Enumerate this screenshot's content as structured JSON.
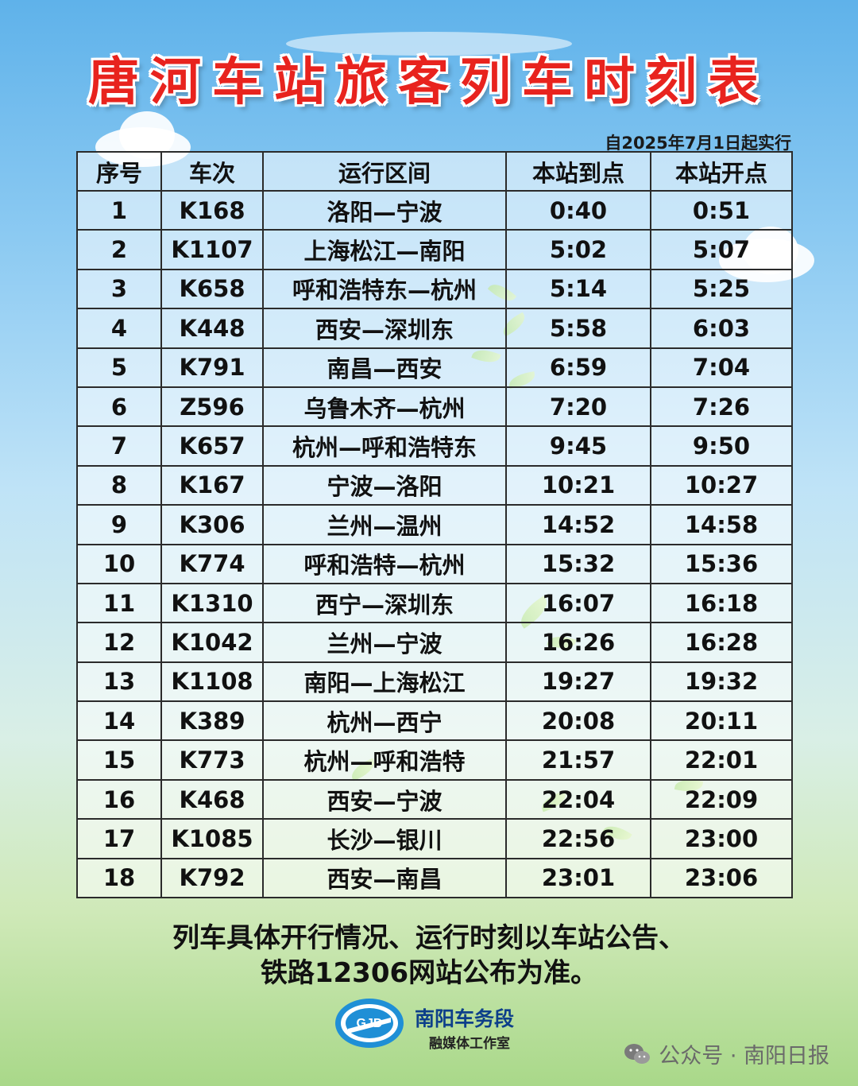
{
  "header": {
    "title": "唐河车站旅客列车时刻表",
    "effective_date": "自2025年7月1日起实行"
  },
  "table": {
    "columns": [
      "序号",
      "车次",
      "运行区间",
      "本站到点",
      "本站开点"
    ],
    "rows": [
      [
        "1",
        "K168",
        "洛阳—宁波",
        "0:40",
        "0:51"
      ],
      [
        "2",
        "K1107",
        "上海松江—南阳",
        "5:02",
        "5:07"
      ],
      [
        "3",
        "K658",
        "呼和浩特东—杭州",
        "5:14",
        "5:25"
      ],
      [
        "4",
        "K448",
        "西安—深圳东",
        "5:58",
        "6:03"
      ],
      [
        "5",
        "K791",
        "南昌—西安",
        "6:59",
        "7:04"
      ],
      [
        "6",
        "Z596",
        "乌鲁木齐—杭州",
        "7:20",
        "7:26"
      ],
      [
        "7",
        "K657",
        "杭州—呼和浩特东",
        "9:45",
        "9:50"
      ],
      [
        "8",
        "K167",
        "宁波—洛阳",
        "10:21",
        "10:27"
      ],
      [
        "9",
        "K306",
        "兰州—温州",
        "14:52",
        "14:58"
      ],
      [
        "10",
        "K774",
        "呼和浩特—杭州",
        "15:32",
        "15:36"
      ],
      [
        "11",
        "K1310",
        "西宁—深圳东",
        "16:07",
        "16:18"
      ],
      [
        "12",
        "K1042",
        "兰州—宁波",
        "16:26",
        "16:28"
      ],
      [
        "13",
        "K1108",
        "南阳—上海松江",
        "19:27",
        "19:32"
      ],
      [
        "14",
        "K389",
        "杭州—西宁",
        "20:08",
        "20:11"
      ],
      [
        "15",
        "K773",
        "杭州—呼和浩特",
        "21:57",
        "22:01"
      ],
      [
        "16",
        "K468",
        "西安—宁波",
        "22:04",
        "22:09"
      ],
      [
        "17",
        "K1085",
        "长沙—银川",
        "22:56",
        "23:00"
      ],
      [
        "18",
        "K792",
        "西安—南昌",
        "23:01",
        "23:06"
      ]
    ]
  },
  "footer": {
    "note_line1": "列车具体开行情况、运行时刻以车站公告、",
    "note_line2": "铁路12306网站公布为准。"
  },
  "logo": {
    "name": "南阳车务段",
    "subtitle": "融媒体工作室",
    "icon": "railway-logo-icon"
  },
  "watermark": {
    "text": "公众号 · 南阳日报",
    "icon": "wechat-icon"
  },
  "colors": {
    "title": "#e8231e",
    "logo_blue": "#0d3f8a"
  }
}
